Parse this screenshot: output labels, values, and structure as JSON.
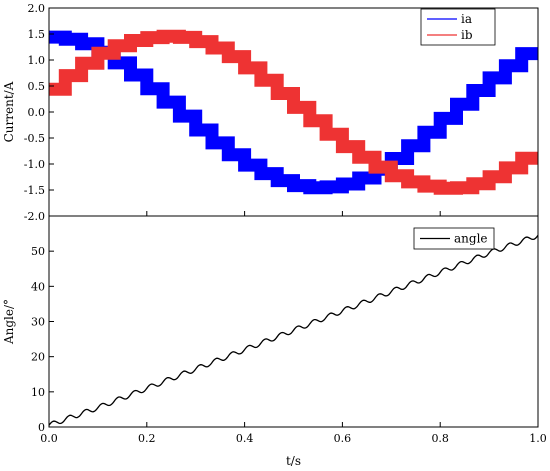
{
  "chart_data": [
    {
      "type": "line",
      "panel": "top",
      "ylabel": "Current/A",
      "ylim": [
        -2.0,
        2.0
      ],
      "yticks": [
        "2.0",
        "1.5",
        "1.0",
        "0.5",
        "0.0",
        "-0.5",
        "-1.0",
        "-1.5",
        "-2.0"
      ],
      "xlim": [
        0.0,
        1.0
      ],
      "legend": "top-right",
      "series": [
        {
          "name": "ia",
          "color": "#0000ff",
          "x": [
            0.0,
            0.033,
            0.067,
            0.1,
            0.133,
            0.167,
            0.2,
            0.233,
            0.267,
            0.3,
            0.333,
            0.367,
            0.4,
            0.433,
            0.467,
            0.5,
            0.533,
            0.567,
            0.6,
            0.633,
            0.667,
            0.7,
            0.733,
            0.767,
            0.8,
            0.833,
            0.867,
            0.9,
            0.933,
            0.967,
            1.0
          ],
          "values": [
            1.45,
            1.43,
            1.37,
            1.25,
            1.05,
            0.84,
            0.58,
            0.32,
            0.06,
            -0.22,
            -0.47,
            -0.72,
            -0.93,
            -1.11,
            -1.26,
            -1.38,
            -1.45,
            -1.46,
            -1.42,
            -1.35,
            -1.19,
            -1.01,
            -0.78,
            -0.52,
            -0.26,
            0.01,
            0.29,
            0.54,
            0.77,
            1.01,
            1.24
          ]
        },
        {
          "name": "ib",
          "color": "#ee3333",
          "x": [
            0.0,
            0.033,
            0.067,
            0.1,
            0.133,
            0.167,
            0.2,
            0.233,
            0.267,
            0.3,
            0.333,
            0.367,
            0.4,
            0.433,
            0.467,
            0.5,
            0.533,
            0.567,
            0.6,
            0.633,
            0.667,
            0.7,
            0.733,
            0.767,
            0.8,
            0.833,
            0.867,
            0.9,
            0.933,
            0.967,
            1.0
          ],
          "values": [
            0.3,
            0.57,
            0.83,
            1.05,
            1.21,
            1.34,
            1.41,
            1.45,
            1.46,
            1.41,
            1.3,
            1.16,
            0.97,
            0.73,
            0.49,
            0.22,
            -0.04,
            -0.3,
            -0.56,
            -0.77,
            -0.97,
            -1.15,
            -1.3,
            -1.39,
            -1.46,
            -1.47,
            -1.44,
            -1.32,
            -1.17,
            -0.98,
            -0.8
          ]
        }
      ]
    },
    {
      "type": "line",
      "panel": "bottom",
      "xlabel": "t/s",
      "ylabel": "Angle/°",
      "ylim": [
        0,
        60
      ],
      "yticks": [
        "60",
        "50",
        "40",
        "30",
        "20",
        "10",
        "0"
      ],
      "xlim": [
        0.0,
        1.0
      ],
      "xticks": [
        "0.0",
        "0.2",
        "0.4",
        "0.6",
        "0.8",
        "1.0"
      ],
      "legend": "top-right",
      "series": [
        {
          "name": "angle",
          "color": "#000000",
          "x": [
            0.0,
            0.1,
            0.2,
            0.3,
            0.4,
            0.5,
            0.6,
            0.7,
            0.8,
            0.9,
            1.0
          ],
          "values": [
            0.5,
            5.5,
            11,
            16.5,
            22,
            27.5,
            33,
            38.5,
            44,
            49.5,
            54.5
          ]
        }
      ]
    }
  ]
}
